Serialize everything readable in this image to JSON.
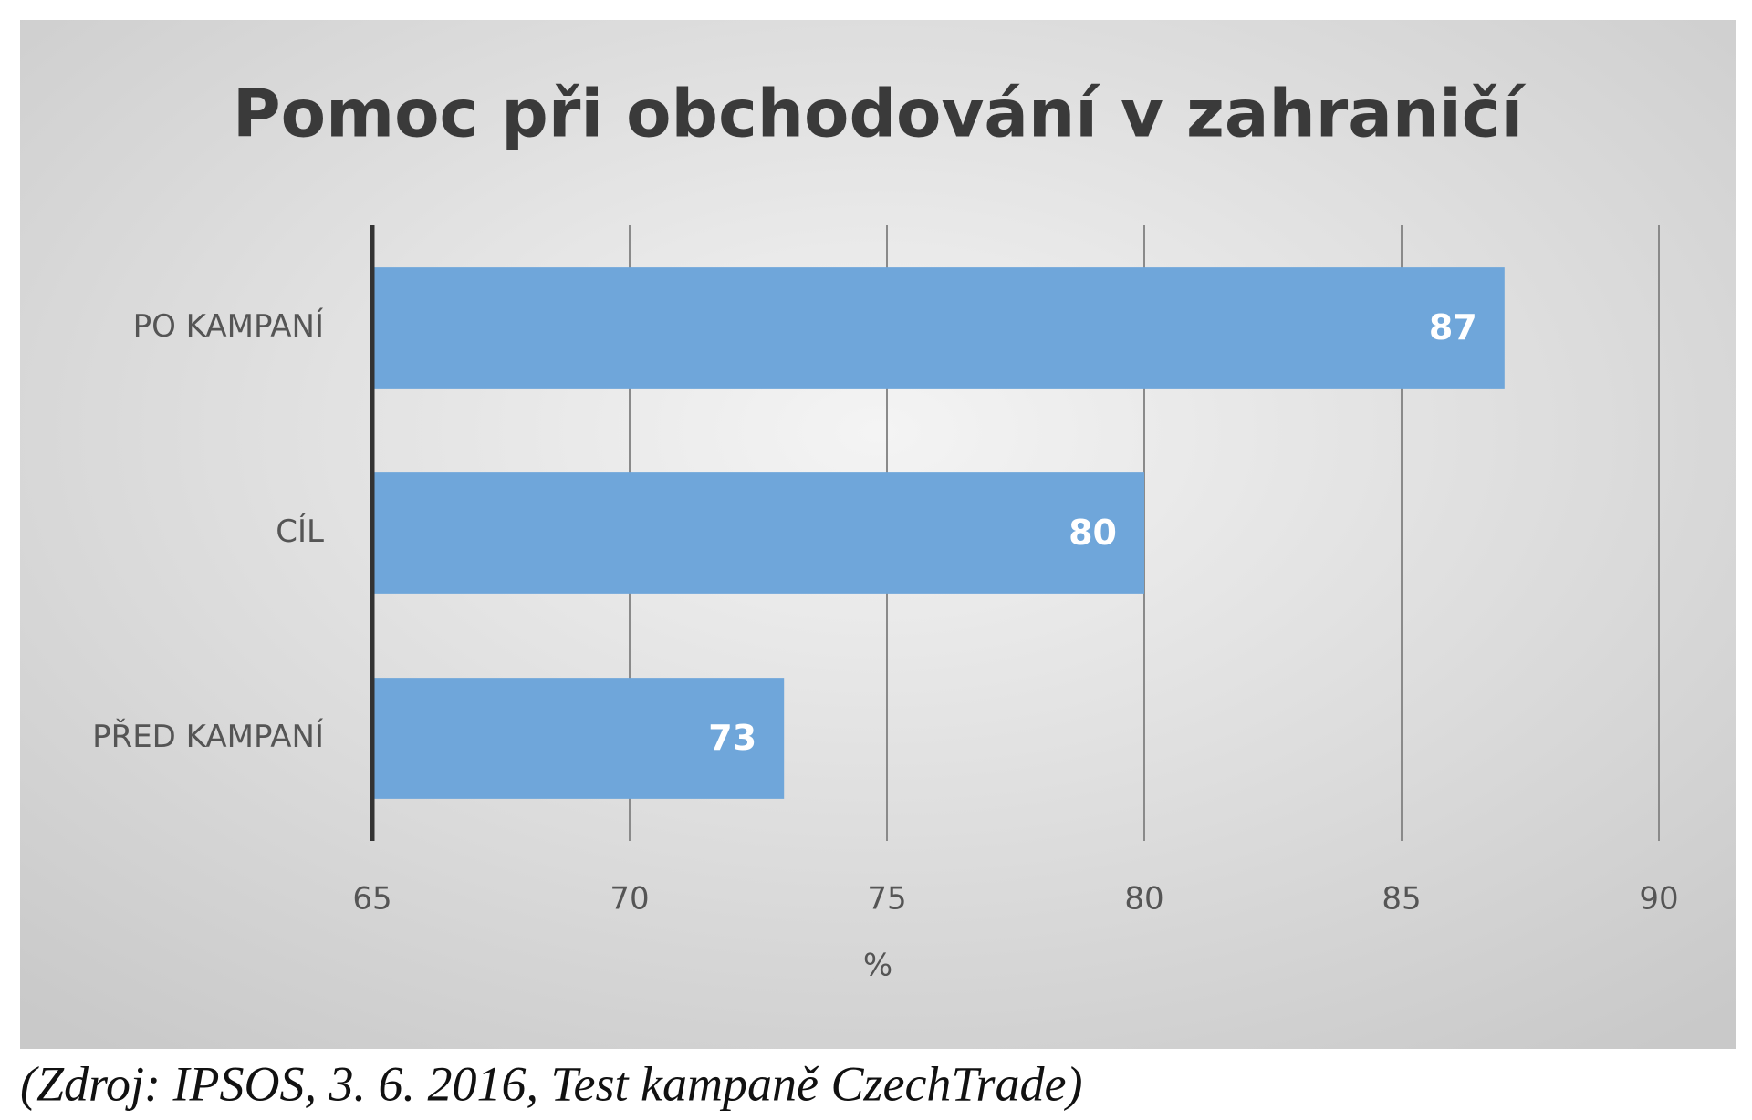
{
  "chart_data": {
    "type": "barh",
    "title": "Pomoc při obchodování v zahraničí",
    "categories": [
      "PO KAMPANÍ",
      "CÍL",
      "PŘED KAMPANÍ"
    ],
    "values": [
      87,
      80,
      73
    ],
    "color": "#6fa6da",
    "xlim": [
      65,
      90
    ],
    "xticks": [
      65,
      70,
      75,
      80,
      85,
      90
    ],
    "xlabel": "%",
    "grid": true
  },
  "caption": "(Zdroj: IPSOS, 3. 6. 2016, Test kampaně CzechTrade)"
}
